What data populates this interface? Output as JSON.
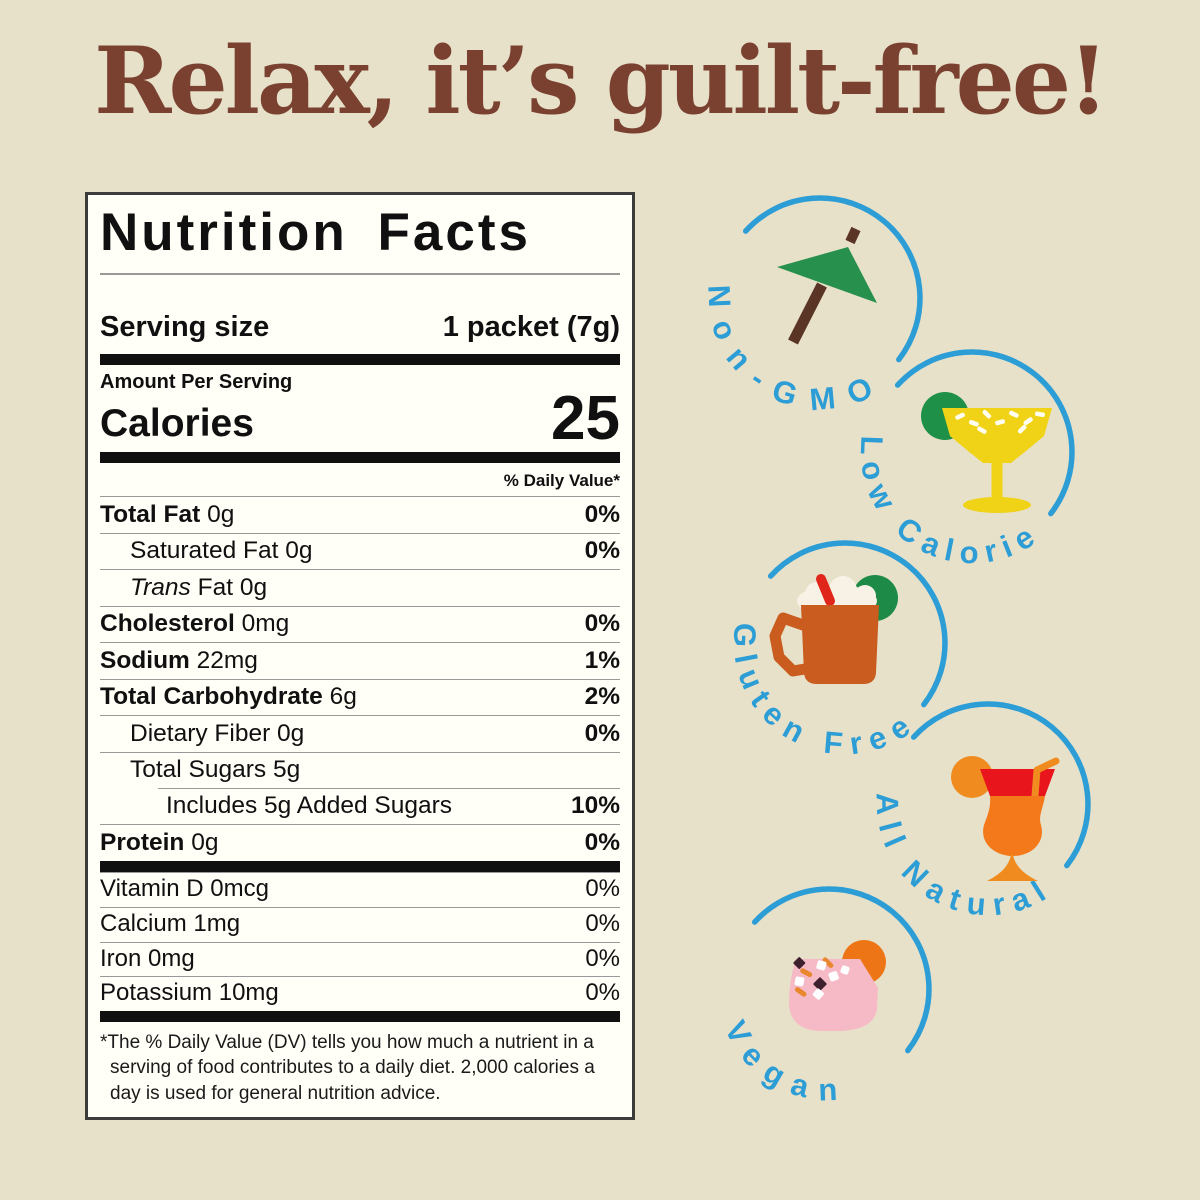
{
  "page": {
    "heading": "Relax, it’s guilt-free!"
  },
  "colors": {
    "background": "#e7e1ca",
    "heading_brown": "#7a4130",
    "badge_blue": "#2d9dd6",
    "label_bg": "#fffef7",
    "label_border": "#3c3c3c",
    "umbrella_green": "#27904d",
    "umbrella_stick_brown": "#5a3424",
    "margarita_yellow": "#f0d316",
    "lime_green": "#1e9048",
    "mule_copper": "#c95c1e",
    "straw_red": "#e0261a",
    "hurricane_orange": "#f4791b",
    "hurricane_band_red": "#e8151c",
    "vegan_pink": "#f6b9c6",
    "garnish_orange": "#ee7516"
  },
  "nutrition_label": {
    "title": "Nutrition Facts",
    "serving_size_label": "Serving size",
    "serving_size_value": "1 packet (7g)",
    "amount_per_serving_label": "Amount Per Serving",
    "calories_label": "Calories",
    "calories_value": "25",
    "daily_value_header": "% Daily Value*",
    "rows": [
      {
        "name": "Total Fat",
        "amount": "0g",
        "dv": "0%",
        "bold": true,
        "indent": 0,
        "dv_bold": true
      },
      {
        "name": "Saturated Fat",
        "amount": "0g",
        "dv": "0%",
        "bold": false,
        "indent": 1,
        "dv_bold": true
      },
      {
        "name_italic": "Trans",
        "name": "Fat",
        "amount": "0g",
        "dv": "",
        "bold": false,
        "indent": 1,
        "dv_bold": false
      },
      {
        "name": "Cholesterol",
        "amount": "0mg",
        "dv": "0%",
        "bold": true,
        "indent": 0,
        "dv_bold": true
      },
      {
        "name": "Sodium",
        "amount": "22mg",
        "dv": "1%",
        "bold": true,
        "indent": 0,
        "dv_bold": true
      },
      {
        "name": "Total Carbohydrate",
        "amount": "6g",
        "dv": "2%",
        "bold": true,
        "indent": 0,
        "dv_bold": true
      },
      {
        "name": "Dietary Fiber",
        "amount": "0g",
        "dv": "0%",
        "bold": false,
        "indent": 1,
        "dv_bold": true
      },
      {
        "name": "Total Sugars",
        "amount": "5g",
        "dv": "",
        "bold": false,
        "indent": 1,
        "dv_bold": false
      },
      {
        "name": "Includes 5g Added Sugars",
        "amount": "",
        "dv": "10%",
        "bold": false,
        "indent": 2,
        "dv_bold": true,
        "line_indent": true
      },
      {
        "name": "Protein",
        "amount": "0g",
        "dv": "0%",
        "bold": true,
        "indent": 0,
        "dv_bold": true
      }
    ],
    "micronutrients": [
      {
        "name": "Vitamin D",
        "amount": "0mcg",
        "dv": "0%"
      },
      {
        "name": "Calcium",
        "amount": "1mg",
        "dv": "0%"
      },
      {
        "name": "Iron",
        "amount": "0mg",
        "dv": "0%"
      },
      {
        "name": "Potassium",
        "amount": "10mg",
        "dv": "0%"
      }
    ],
    "footnote": "*The % Daily Value (DV) tells you how much a nutrient in a serving of food contributes to a daily diet. 2,000 calories a day is used for general nutrition advice."
  },
  "badges": [
    {
      "label": "Non-GMO",
      "icon": "cocktail-umbrella-icon"
    },
    {
      "label": "Low Calorie",
      "icon": "margarita-glass-icon"
    },
    {
      "label": "Gluten Free",
      "icon": "mule-mug-icon"
    },
    {
      "label": "All Natural",
      "icon": "hurricane-glass-icon"
    },
    {
      "label": "Vegan",
      "icon": "pink-cocktail-icon"
    }
  ]
}
